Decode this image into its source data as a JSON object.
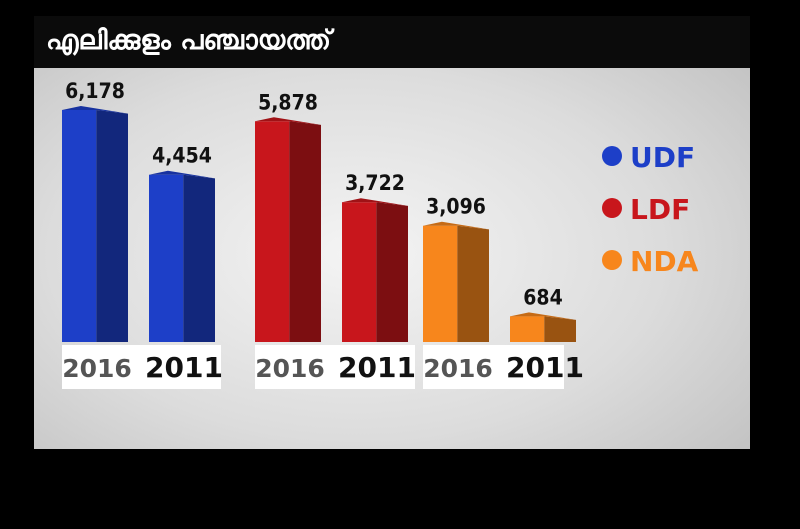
{
  "title": "എലിക്കുളം പഞ്ചായത്ത്",
  "colors": {
    "UDF": "#1d3fc8",
    "LDF": "#c8161c",
    "NDA": "#f7861c"
  },
  "chart_data": {
    "type": "bar",
    "title": "എലിക്കുളം പഞ്ചായത്ത്",
    "categories": [
      "2016",
      "2011"
    ],
    "series": [
      {
        "name": "UDF",
        "values": [
          6178,
          4454
        ],
        "value_labels": [
          "6,178",
          "4,454"
        ]
      },
      {
        "name": "LDF",
        "values": [
          5878,
          3722
        ],
        "value_labels": [
          "5,878",
          "3,722"
        ]
      },
      {
        "name": "NDA",
        "values": [
          3096,
          684
        ],
        "value_labels": [
          "3,096",
          "684"
        ]
      }
    ],
    "legend": [
      "UDF",
      "LDF",
      "NDA"
    ],
    "legend_position": "right",
    "xlabel": "",
    "ylabel": "",
    "grid": false
  }
}
